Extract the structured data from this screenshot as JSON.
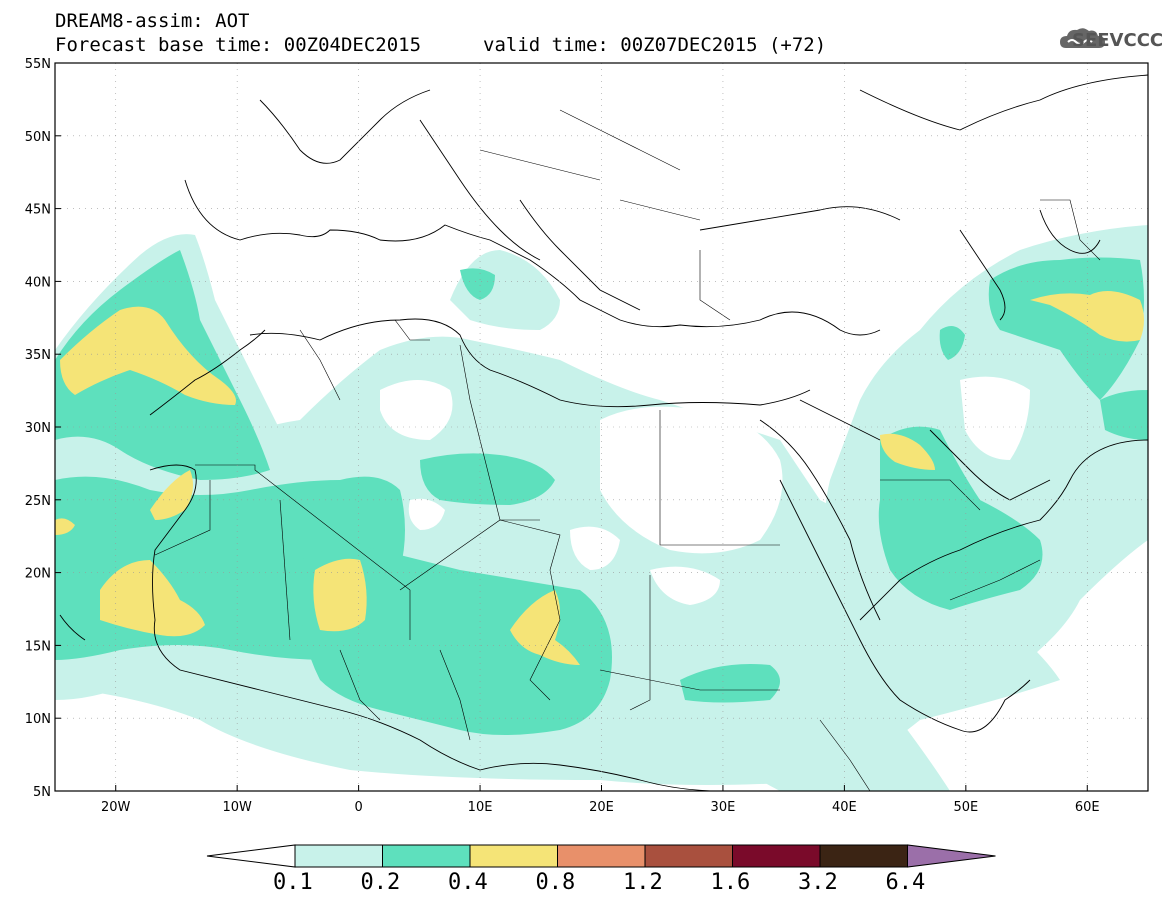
{
  "header": {
    "line1": "DREAM8-assim: AOT",
    "line2": "Forecast base time: 00Z04DEC2015",
    "line3": "valid time: 00Z07DEC2015 (+72)",
    "logo_text": "SEEVCCC",
    "logo_icon": "cloud-icon"
  },
  "map": {
    "lon_range": [
      -25,
      65
    ],
    "lat_range": [
      5,
      55
    ],
    "lat_ticks": [
      {
        "value": 55,
        "label": "55N"
      },
      {
        "value": 50,
        "label": "50N"
      },
      {
        "value": 45,
        "label": "45N"
      },
      {
        "value": 40,
        "label": "40N"
      },
      {
        "value": 35,
        "label": "35N"
      },
      {
        "value": 30,
        "label": "30N"
      },
      {
        "value": 25,
        "label": "25N"
      },
      {
        "value": 20,
        "label": "20N"
      },
      {
        "value": 15,
        "label": "15N"
      },
      {
        "value": 10,
        "label": "10N"
      },
      {
        "value": 5,
        "label": "5N"
      }
    ],
    "lon_ticks": [
      {
        "value": -20,
        "label": "20W"
      },
      {
        "value": -10,
        "label": "10W"
      },
      {
        "value": 0,
        "label": "0"
      },
      {
        "value": 10,
        "label": "10E"
      },
      {
        "value": 20,
        "label": "20E"
      },
      {
        "value": 30,
        "label": "30E"
      },
      {
        "value": 40,
        "label": "40E"
      },
      {
        "value": 50,
        "label": "50E"
      },
      {
        "value": 60,
        "label": "60E"
      }
    ]
  },
  "colorbar": {
    "levels": [
      "0.1",
      "0.2",
      "0.4",
      "0.8",
      "1.2",
      "1.6",
      "3.2",
      "6.4"
    ],
    "colors": [
      "#c8f2ea",
      "#5ee0bd",
      "#f5e477",
      "#e8906a",
      "#a9503e",
      "#7a0a2a",
      "#3b2414",
      "#9b6fa9"
    ]
  }
}
